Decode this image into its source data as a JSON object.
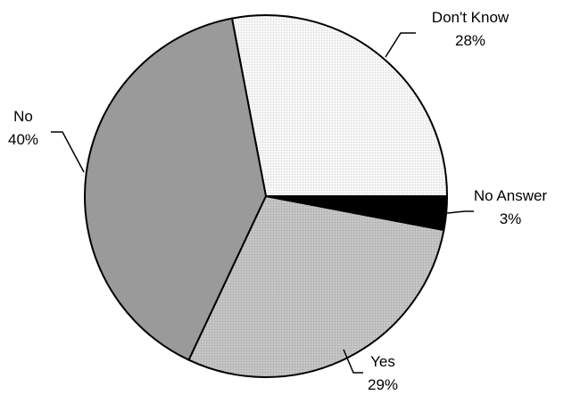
{
  "chart_data": {
    "type": "pie",
    "title": "",
    "start_angle_deg": 0,
    "direction": "counterclockwise",
    "slices": [
      {
        "label": "Don't Know",
        "value": 28,
        "value_label": "28%",
        "fill": "#f4f4f4",
        "pattern": "fine-dots"
      },
      {
        "label": "No",
        "value": 40,
        "value_label": "40%",
        "fill": "#9a9a9a",
        "pattern": "none"
      },
      {
        "label": "Yes",
        "value": 29,
        "value_label": "29%",
        "fill": "#bdbdbd",
        "pattern": "fine-dots"
      },
      {
        "label": "No Answer",
        "value": 3,
        "value_label": "3%",
        "fill": "#000000",
        "pattern": "none"
      }
    ]
  }
}
